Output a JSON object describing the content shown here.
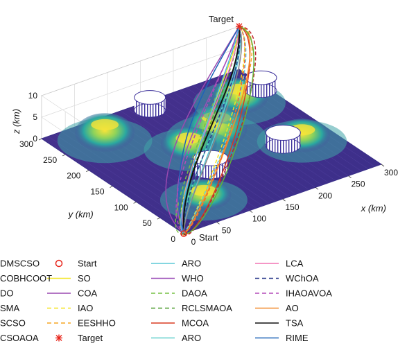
{
  "chart_data": {
    "type": "line",
    "view": "3d",
    "xlabel": "x (km)",
    "ylabel": "y (km)",
    "zlabel": "z (km)",
    "xlim": [
      0,
      300
    ],
    "ylim": [
      0,
      300
    ],
    "zlim": [
      0,
      10
    ],
    "xticks": [
      "0",
      "50",
      "100",
      "150",
      "200",
      "250",
      "300"
    ],
    "yticks": [
      "0",
      "50",
      "100",
      "150",
      "200",
      "250",
      "300"
    ],
    "zticks": [
      "0",
      "5",
      "10"
    ],
    "grid": true,
    "start_label": "Start",
    "target_label": "Target",
    "legend_position": "bottom",
    "legend": [
      {
        "label": "Start",
        "marker": "circle",
        "color": "#e8261c"
      },
      {
        "label": "SO",
        "color": "#f2e629",
        "dash": "solid"
      },
      {
        "label": "COA",
        "color": "#9a49b0",
        "dash": "solid"
      },
      {
        "label": "IAO",
        "color": "#f5e31c",
        "dash": "dashed"
      },
      {
        "label": "EESHHO",
        "color": "#f5a623",
        "dash": "dashed"
      },
      {
        "label": "Target",
        "marker": "asterisk",
        "color": "#e8261c"
      },
      {
        "label": "ARO",
        "color": "#5bc8d6",
        "dash": "solid"
      },
      {
        "label": "WHO",
        "color": "#9b4fb8",
        "dash": "solid"
      },
      {
        "label": "DAOA",
        "color": "#77c043",
        "dash": "dashed"
      },
      {
        "label": "RCLSMAOA",
        "color": "#4a9a2c",
        "dash": "dashed"
      },
      {
        "label": "MCOA",
        "color": "#d83a20",
        "dash": "solid"
      },
      {
        "label": "ARO",
        "color": "#62d0cc",
        "dash": "solid"
      },
      {
        "label": "LCA",
        "color": "#f274b4",
        "dash": "solid"
      },
      {
        "label": "WChOA",
        "color": "#2b3a8c",
        "dash": "dashed"
      },
      {
        "label": "IHAOAVOA",
        "color": "#b44ab8",
        "dash": "dashed"
      },
      {
        "label": "AO",
        "color": "#f28a2c",
        "dash": "solid"
      },
      {
        "label": "TSA",
        "color": "#111111",
        "dash": "solid"
      },
      {
        "label": "RIME",
        "color": "#1f63b8",
        "dash": "solid"
      },
      {
        "label": "DMSCSO",
        "color": "#63cde6",
        "dash": "dashed"
      },
      {
        "label": "COBHCOOT",
        "color": "#c0262c",
        "dash": "dashed"
      },
      {
        "label": "DO",
        "color": "#62b236",
        "dash": "solid"
      },
      {
        "label": "SMA",
        "color": "#4fb8e8",
        "dash": "solid"
      },
      {
        "label": "SCSO",
        "color": "#888888",
        "dash": "solid"
      },
      {
        "label": "CSOAOA",
        "color": "#f56a2c",
        "dash": "dashed"
      }
    ],
    "terrain_peaks": [
      {
        "x": 60,
        "y": 250,
        "z": 5
      },
      {
        "x": 175,
        "y": 175,
        "z": 6
      },
      {
        "x": 130,
        "y": 170,
        "z": 4
      },
      {
        "x": 250,
        "y": 230,
        "z": 4.5
      },
      {
        "x": 70,
        "y": 55,
        "z": 3.5
      },
      {
        "x": 255,
        "y": 105,
        "z": 4
      }
    ],
    "threat_cylinders": [
      {
        "x": 150,
        "y": 280,
        "r": 18,
        "h": 3
      },
      {
        "x": 290,
        "y": 240,
        "r": 18,
        "h": 3
      },
      {
        "x": 120,
        "y": 110,
        "r": 20,
        "h": 3
      },
      {
        "x": 230,
        "y": 110,
        "r": 20,
        "h": 3
      }
    ],
    "start_point": {
      "x": 0,
      "y": 0,
      "z": 0
    },
    "target_point": {
      "x": 300,
      "y": 300,
      "z": 10
    }
  }
}
